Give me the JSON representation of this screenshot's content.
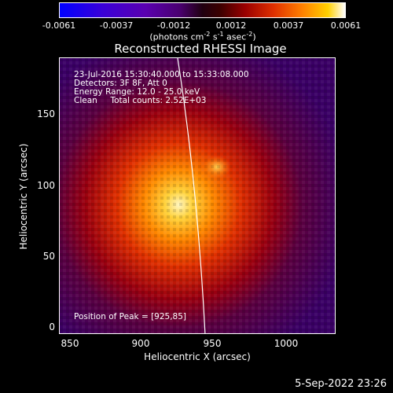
{
  "colorbar": {
    "ticks": [
      "-0.0061",
      "-0.0037",
      "-0.0012",
      "0.0012",
      "0.0037",
      "0.0061"
    ],
    "unit": {
      "prefix": "(photons cm",
      "e1": "-2",
      "mid": " s",
      "e2": "-1",
      "mid2": " asec",
      "e3": "-2",
      "suffix": ")"
    }
  },
  "title": "Reconstructed RHESSI Image",
  "info": {
    "line1": "23-Jul-2016 15:30:40.000 to 15:33:08.000",
    "line2": "Detectors: 3F 8F, Att 0",
    "line3": "Energy Range: 12.0 - 25.0 keV",
    "line4": "Clean     Total counts: 2.52E+03",
    "peak": "Position of Peak = [925,85]"
  },
  "axes": {
    "xlabel": "Heliocentric X (arcsec)",
    "ylabel": "Heliocentric Y (arcsec)",
    "xticks": [
      "850",
      "900",
      "950",
      "1000"
    ],
    "yticks": [
      "150",
      "100",
      "50",
      "0"
    ]
  },
  "timestamp": "5-Sep-2022 23:26"
}
